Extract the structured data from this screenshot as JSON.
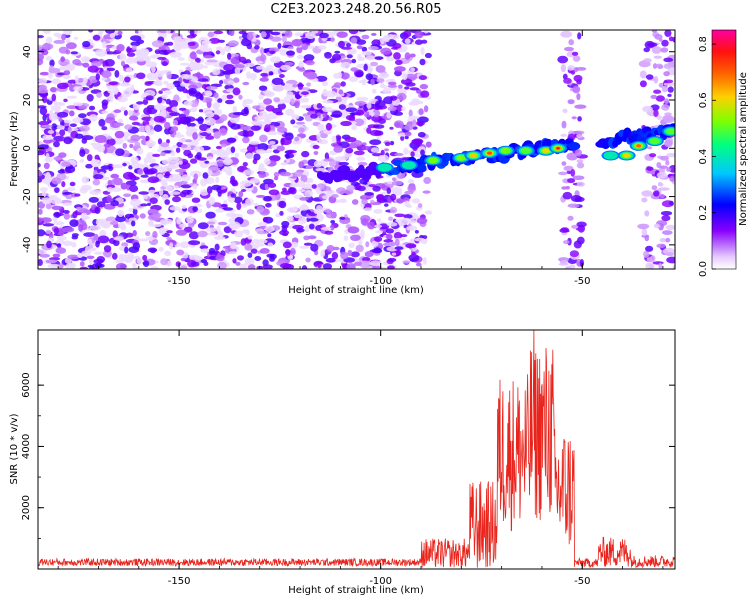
{
  "figure": {
    "title": "C2E3.2023.248.20.56.R05"
  },
  "chart_data": [
    {
      "type": "heatmap",
      "xlabel": "Height of straight line (km)",
      "ylabel": "Frequency (Hz)",
      "xlim": [
        -185,
        -27
      ],
      "ylim": [
        -50,
        49
      ],
      "xticks": [
        -150,
        -100,
        -50
      ],
      "yticks": [
        -40,
        -20,
        0,
        20,
        40
      ],
      "grid": false,
      "colorbar": {
        "label": "Normalized spectral amplitude",
        "range": [
          0.0,
          0.85
        ],
        "ticks": [
          0.0,
          0.2,
          0.4,
          0.6,
          0.8
        ],
        "colormap": "rainbow (white-violet-blue-cyan-green-yellow-red-magenta)"
      },
      "band": {
        "description": "narrow signal trace",
        "start": {
          "x": -115,
          "y": -12
        },
        "end": {
          "x": -27,
          "y": 7
        },
        "gaps_x": [
          [
            -52,
            -46
          ]
        ],
        "peaks": [
          {
            "x": -99,
            "y": -8,
            "amp": 0.4
          },
          {
            "x": -93,
            "y": -7,
            "amp": 0.45
          },
          {
            "x": -87,
            "y": -5,
            "amp": 0.55
          },
          {
            "x": -80,
            "y": -4,
            "amp": 0.55
          },
          {
            "x": -77,
            "y": -3,
            "amp": 0.65
          },
          {
            "x": -73,
            "y": -2,
            "amp": 0.75
          },
          {
            "x": -69,
            "y": -1,
            "amp": 0.55
          },
          {
            "x": -64,
            "y": -1,
            "amp": 0.5
          },
          {
            "x": -59,
            "y": -1,
            "amp": 0.6
          },
          {
            "x": -56,
            "y": 0,
            "amp": 0.8
          },
          {
            "x": -43,
            "y": -3,
            "amp": 0.45
          },
          {
            "x": -39,
            "y": -3,
            "amp": 0.6
          },
          {
            "x": -36,
            "y": 1,
            "amp": 0.7
          },
          {
            "x": -32,
            "y": 3,
            "amp": 0.5
          },
          {
            "x": -28,
            "y": 7,
            "amp": 0.5
          }
        ]
      },
      "noise_regions": [
        {
          "x_range": [
            -185,
            -88
          ],
          "y_range": [
            -50,
            49
          ],
          "level": "dense"
        },
        {
          "x_range": [
            -55,
            -50
          ],
          "y_range": [
            -50,
            49
          ],
          "level": "vertical strip"
        },
        {
          "x_range": [
            -35,
            -27
          ],
          "y_range": [
            -50,
            49
          ],
          "level": "vertical strip"
        }
      ]
    },
    {
      "type": "line",
      "xlabel": "Height of straight line (km)",
      "ylabel": "SNR (10 * v/v)",
      "xlim": [
        -185,
        -27
      ],
      "ylim": [
        0,
        7800
      ],
      "xticks": [
        -150,
        -100,
        -50
      ],
      "yticks": [
        2000,
        4000,
        6000
      ],
      "grid": false,
      "series": [
        {
          "color": "#e8241c",
          "segments": [
            {
              "x_range": [
                -185,
                -90
              ],
              "level": 220,
              "jitter": 120
            },
            {
              "x_range": [
                -90,
                -78
              ],
              "level": 500,
              "jitter": 500
            },
            {
              "x_range": [
                -78,
                -71
              ],
              "level": 1400,
              "jitter": 1500
            },
            {
              "x_range": [
                -71,
                -63
              ],
              "level": 3800,
              "jitter": 2600
            },
            {
              "x_range": [
                -63,
                -57
              ],
              "level": 4500,
              "jitter": 3000
            },
            {
              "x_range": [
                -57,
                -52
              ],
              "level": 2600,
              "jitter": 2100
            },
            {
              "x_range": [
                -52,
                -46
              ],
              "level": 200,
              "jitter": 150
            },
            {
              "x_range": [
                -46,
                -38
              ],
              "level": 550,
              "jitter": 500
            },
            {
              "x_range": [
                -38,
                -27
              ],
              "level": 250,
              "jitter": 200
            }
          ],
          "peak": {
            "x": -62,
            "y": 7800
          }
        }
      ]
    }
  ]
}
